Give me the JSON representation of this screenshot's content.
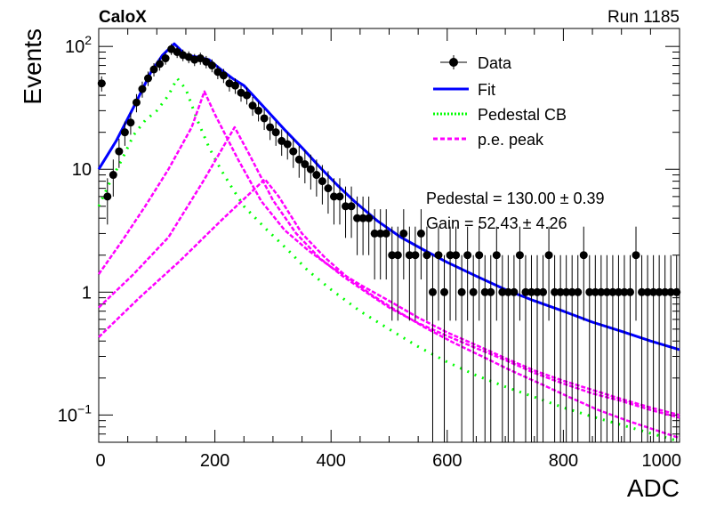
{
  "header": {
    "experiment": "CaloX",
    "run": "Run 1185"
  },
  "annotations": {
    "pedestal": "Pedestal = 130.00 ± 0.39",
    "gain": "Gain = 52.43 ± 4.26"
  },
  "colors": {
    "data": "#000000",
    "fit": "#0000ff",
    "pedestal": "#00ff00",
    "pe": "#ff00ff"
  },
  "chart_data": {
    "type": "scatter",
    "xlabel": "ADC",
    "ylabel": "Events",
    "xlim": [
      0,
      1000
    ],
    "ylim": [
      0.06,
      140
    ],
    "yscale": "log",
    "legend_position": "top-right",
    "x_ticks": [
      "0",
      "200",
      "400",
      "600",
      "800",
      "1000"
    ],
    "y_ticks": [
      {
        "value": 0.1,
        "base": "10",
        "exp": "−1"
      },
      {
        "value": 1,
        "label": "1"
      },
      {
        "value": 10,
        "label": "10"
      },
      {
        "value": 100,
        "base": "10",
        "exp": "2"
      }
    ],
    "legend": [
      {
        "label": "Data",
        "style": "marker"
      },
      {
        "label": "Fit",
        "style": "line"
      },
      {
        "label": "Pedestal CB",
        "style": "dotted-green"
      },
      {
        "label": "p.e. peak",
        "style": "dashed-magenta"
      }
    ],
    "series": [
      {
        "name": "Data",
        "x": [
          5,
          15,
          25,
          35,
          45,
          55,
          65,
          75,
          85,
          95,
          105,
          115,
          125,
          135,
          145,
          155,
          165,
          175,
          185,
          195,
          205,
          215,
          225,
          235,
          245,
          255,
          265,
          275,
          285,
          295,
          305,
          315,
          325,
          335,
          345,
          355,
          365,
          375,
          385,
          395,
          405,
          415,
          425,
          435,
          445,
          455,
          465,
          475,
          485,
          495,
          505,
          515,
          525,
          535,
          545,
          555,
          565,
          575,
          585,
          595,
          605,
          615,
          625,
          635,
          645,
          655,
          665,
          675,
          685,
          695,
          705,
          715,
          725,
          735,
          745,
          755,
          765,
          775,
          785,
          795,
          805,
          815,
          825,
          835,
          845,
          855,
          865,
          875,
          885,
          895,
          905,
          915,
          925,
          935,
          945,
          955,
          965,
          975,
          985,
          995
        ],
        "y": [
          50,
          6,
          9,
          14,
          20,
          24,
          35,
          45,
          55,
          65,
          72,
          80,
          95,
          90,
          85,
          82,
          78,
          80,
          75,
          70,
          62,
          58,
          50,
          48,
          42,
          40,
          33,
          30,
          26,
          22,
          20,
          17,
          16,
          14,
          12,
          11,
          10,
          9,
          8,
          7,
          6,
          6,
          5,
          5,
          4,
          4,
          4,
          3,
          3,
          3,
          2,
          2,
          3,
          2,
          2,
          3,
          2,
          1,
          2,
          1,
          2,
          2,
          1,
          2,
          1,
          2,
          1,
          1,
          2,
          1,
          1,
          1,
          2,
          1,
          1,
          1,
          1,
          2,
          1,
          1,
          1,
          1,
          1,
          2,
          1,
          1,
          1,
          1,
          1,
          1,
          1,
          1,
          2,
          1,
          1,
          1,
          1,
          1,
          1,
          1
        ]
      },
      {
        "name": "Fit",
        "x": [
          0,
          30,
          60,
          90,
          110,
          130,
          150,
          170,
          190,
          210,
          230,
          250,
          270,
          290,
          320,
          350,
          380,
          410,
          440,
          480,
          520,
          560,
          600,
          650,
          700,
          750,
          800,
          850,
          900,
          950,
          1000
        ],
        "y": [
          10,
          17,
          32,
          62,
          85,
          105,
          85,
          82,
          78,
          65,
          55,
          48,
          38,
          30,
          21,
          15,
          10.5,
          7.5,
          5.5,
          3.8,
          2.8,
          2.2,
          1.75,
          1.35,
          1.05,
          0.85,
          0.7,
          0.57,
          0.48,
          0.4,
          0.34
        ]
      },
      {
        "name": "Pedestal CB",
        "x": [
          0,
          20,
          40,
          60,
          80,
          100,
          120,
          135,
          150,
          170,
          190,
          210,
          230,
          250,
          270,
          290,
          310,
          330,
          360,
          400,
          450,
          500,
          550,
          600,
          650,
          700,
          750,
          800,
          850,
          900,
          950,
          1000
        ],
        "y": [
          5,
          8,
          12,
          19,
          25,
          30,
          40,
          55,
          45,
          25,
          15,
          10,
          7,
          5,
          4,
          3.2,
          2.6,
          2.1,
          1.5,
          1.05,
          0.7,
          0.5,
          0.36,
          0.27,
          0.21,
          0.17,
          0.14,
          0.115,
          0.097,
          0.083,
          0.071,
          0.061
        ]
      },
      {
        "name": "p.e. peak",
        "x": [
          0,
          40,
          80,
          120,
          160,
          182,
          200,
          240,
          280,
          320,
          360,
          400,
          450,
          500,
          550,
          600,
          650,
          700,
          750,
          800,
          850,
          900,
          950,
          1000
        ],
        "y": [
          1.4,
          2.6,
          5,
          10,
          22,
          43,
          28,
          12,
          5.5,
          3.2,
          2.2,
          1.6,
          1.15,
          0.85,
          0.62,
          0.47,
          0.37,
          0.29,
          0.23,
          0.19,
          0.16,
          0.135,
          0.115,
          0.1
        ]
      },
      {
        "name": "p.e. peak",
        "x": [
          0,
          60,
          120,
          180,
          234,
          260,
          300,
          340,
          380,
          420,
          460,
          500,
          550,
          600,
          650,
          700,
          750,
          800,
          850,
          900,
          950,
          1000
        ],
        "y": [
          0.75,
          1.4,
          2.8,
          8,
          22,
          13,
          5.6,
          3,
          1.9,
          1.35,
          1,
          0.75,
          0.56,
          0.44,
          0.35,
          0.28,
          0.22,
          0.18,
          0.15,
          0.13,
          0.11,
          0.095
        ]
      },
      {
        "name": "p.e. peak",
        "x": [
          0,
          70,
          140,
          210,
          286,
          310,
          350,
          390,
          430,
          470,
          510,
          560,
          610,
          660,
          710,
          760,
          810,
          860,
          910,
          960,
          1000
        ],
        "y": [
          0.43,
          0.9,
          1.8,
          3.8,
          8.3,
          6,
          3,
          1.9,
          1.3,
          0.95,
          0.72,
          0.52,
          0.39,
          0.3,
          0.23,
          0.18,
          0.14,
          0.11,
          0.09,
          0.075,
          0.065
        ]
      }
    ]
  }
}
